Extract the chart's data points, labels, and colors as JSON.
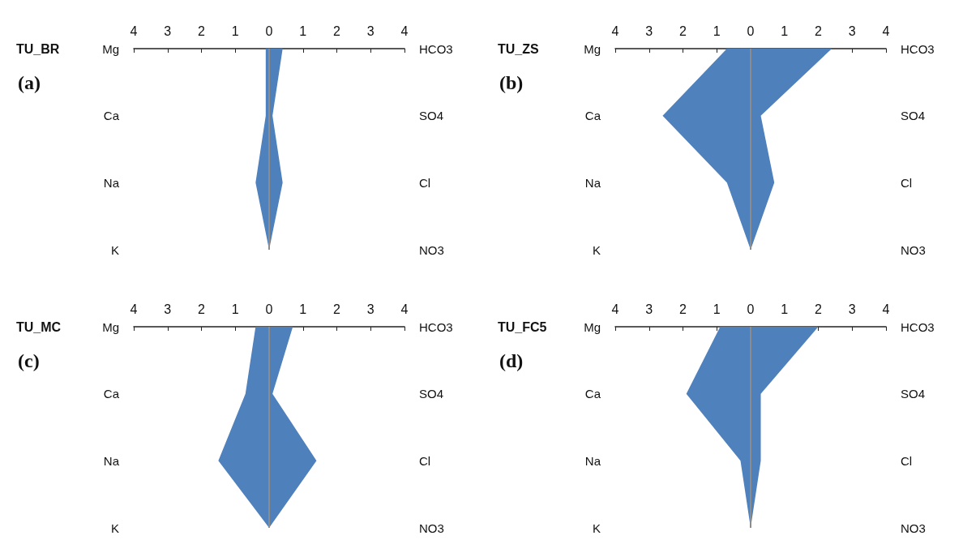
{
  "chart_data": [
    {
      "type": "area",
      "orientation": "horizontal",
      "title": "TU_BR",
      "annotations": [
        "(a)"
      ],
      "categories": [
        "Mg",
        "Ca",
        "Na",
        "K"
      ],
      "y2_categories": [
        "HCO3",
        "SO4",
        "Cl",
        "NO3"
      ],
      "marker": "none",
      "series": [
        {
          "color": "#4f81bd",
          "values": [
            -0.1,
            -0.1,
            -0.4,
            0
          ]
        },
        {
          "color": "#4e80bc",
          "values": [
            0.4,
            0.1,
            0.4,
            0
          ]
        }
      ],
      "xlim": [
        -4,
        4
      ],
      "xticks": [
        {
          "value": -4,
          "label": "4"
        },
        {
          "value": -3,
          "label": "3"
        },
        {
          "value": -2,
          "label": "2"
        },
        {
          "value": -1,
          "label": "1"
        },
        0,
        1,
        2,
        3,
        4
      ],
      "ref_lines": [
        {
          "axis": "x",
          "value": 0,
          "color": "#8c8c8c"
        }
      ]
    },
    {
      "type": "area",
      "orientation": "horizontal",
      "title": "TU_ZS",
      "annotations": [
        "(b)"
      ],
      "categories": [
        "Mg",
        "Ca",
        "Na",
        "K"
      ],
      "y2_categories": [
        "HCO3",
        "SO4",
        "Cl",
        "NO3"
      ],
      "marker": "none",
      "series": [
        {
          "color": "#4f81bd",
          "values": [
            -0.7,
            -2.6,
            -0.7,
            0
          ]
        },
        {
          "color": "#4e80bc",
          "values": [
            2.4,
            0.3,
            0.7,
            0
          ]
        }
      ],
      "xlim": [
        -4,
        4
      ],
      "xticks": [
        {
          "value": -4,
          "label": "4"
        },
        {
          "value": -3,
          "label": "3"
        },
        {
          "value": -2,
          "label": "2"
        },
        {
          "value": -1,
          "label": "1"
        },
        0,
        1,
        2,
        3,
        4
      ],
      "ref_lines": [
        {
          "axis": "x",
          "value": 0,
          "color": "#8c8c8c"
        }
      ]
    },
    {
      "type": "area",
      "orientation": "horizontal",
      "title": "TU_MC",
      "annotations": [
        "(c)"
      ],
      "categories": [
        "Mg",
        "Ca",
        "Na",
        "K"
      ],
      "y2_categories": [
        "HCO3",
        "SO4",
        "Cl",
        "NO3"
      ],
      "marker": "none",
      "series": [
        {
          "color": "#4f81bd",
          "values": [
            -0.4,
            -0.7,
            -1.5,
            0
          ]
        },
        {
          "color": "#4e80bc",
          "values": [
            0.7,
            0.1,
            1.4,
            0
          ]
        }
      ],
      "xlim": [
        -4,
        4
      ],
      "xticks": [
        {
          "value": -4,
          "label": "4"
        },
        {
          "value": -3,
          "label": "3"
        },
        {
          "value": -2,
          "label": "2"
        },
        {
          "value": -1,
          "label": "1"
        },
        0,
        1,
        2,
        3,
        4
      ],
      "ref_lines": [
        {
          "axis": "x",
          "value": 0,
          "color": "#8c8c8c"
        }
      ]
    },
    {
      "type": "area",
      "orientation": "horizontal",
      "title": "TU_FC5",
      "annotations": [
        "(d)"
      ],
      "categories": [
        "Mg",
        "Ca",
        "Na",
        "K"
      ],
      "y2_categories": [
        "HCO3",
        "SO4",
        "Cl",
        "NO3"
      ],
      "marker": "none",
      "series": [
        {
          "color": "#4f81bd",
          "values": [
            -0.9,
            -1.9,
            -0.3,
            0
          ]
        },
        {
          "color": "#4e80bc",
          "values": [
            2.0,
            0.3,
            0.3,
            0
          ]
        }
      ],
      "xlim": [
        -4,
        4
      ],
      "xticks": [
        {
          "value": -4,
          "label": "4"
        },
        {
          "value": -3,
          "label": "3"
        },
        {
          "value": -2,
          "label": "2"
        },
        {
          "value": -1,
          "label": "1"
        },
        0,
        1,
        2,
        3,
        4
      ],
      "ref_lines": [
        {
          "axis": "x",
          "value": 0,
          "color": "#8c8c8c"
        }
      ]
    }
  ]
}
